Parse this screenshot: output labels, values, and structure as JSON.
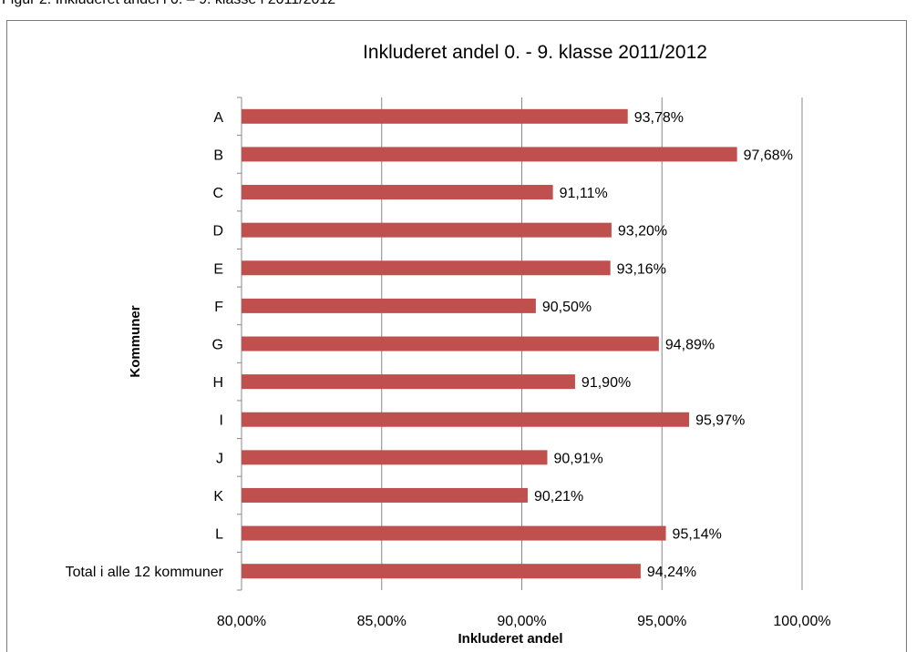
{
  "caption": "Figur 2: Inkluderet andel i 0. – 9. klasse i 2011/2012",
  "chart_data": {
    "type": "bar",
    "orientation": "horizontal",
    "title": "Inkluderet andel 0. - 9. klasse 2011/2012",
    "xlabel": "Inkluderet andel",
    "ylabel": "Kommuner",
    "xlim": [
      80,
      100
    ],
    "xticks": [
      80,
      85,
      90,
      95,
      100
    ],
    "xtick_labels": [
      "80,00%",
      "85,00%",
      "90,00%",
      "95,00%",
      "100,00%"
    ],
    "grid": "vertical",
    "legend": "none",
    "bar_color": "#c0504d",
    "categories": [
      "A",
      "B",
      "C",
      "D",
      "E",
      "F",
      "G",
      "H",
      "I",
      "J",
      "K",
      "L",
      "Total i alle 12 kommuner"
    ],
    "values": [
      93.78,
      97.68,
      91.11,
      93.2,
      93.16,
      90.5,
      94.89,
      91.9,
      95.97,
      90.91,
      90.21,
      95.14,
      94.24
    ],
    "data_labels": [
      "93,78%",
      "97,68%",
      "91,11%",
      "93,20%",
      "93,16%",
      "90,50%",
      "94,89%",
      "91,90%",
      "95,97%",
      "90,91%",
      "90,21%",
      "95,14%",
      "94,24%"
    ]
  }
}
